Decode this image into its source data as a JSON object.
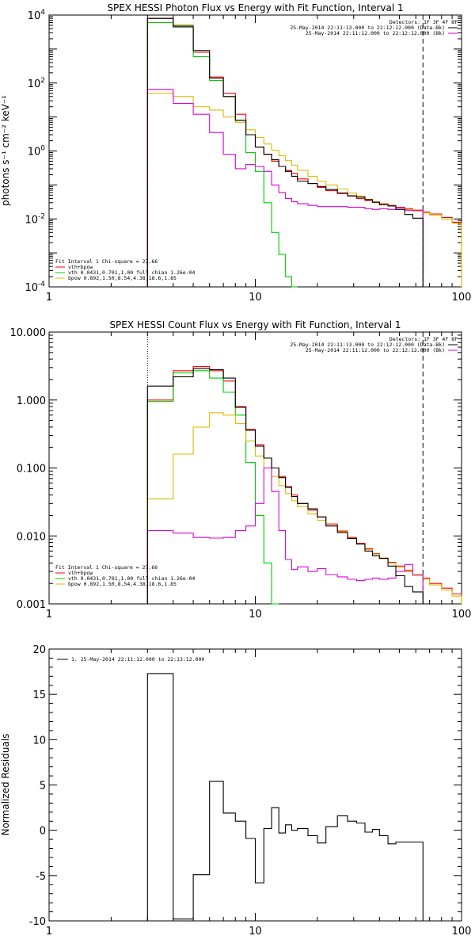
{
  "chart_data": [
    {
      "type": "line",
      "title": "SPEX HESSI Photon Flux vs Energy with Fit Function, Interval 1",
      "xlabel": "",
      "ylabel": "photons s⁻¹ cm⁻² keV⁻¹",
      "xscale": "log",
      "yscale": "log",
      "xlim": [
        1,
        100
      ],
      "ylim": [
        0.0001,
        10000
      ],
      "xticks": [
        {
          "v": 1,
          "label": "1"
        },
        {
          "v": 10,
          "label": "10"
        },
        {
          "v": 100,
          "label": "100"
        }
      ],
      "yticks": [
        {
          "v": 0.0001,
          "base": "10",
          "exp": "-4"
        },
        {
          "v": 0.01,
          "base": "10",
          "exp": "-2"
        },
        {
          "v": 1,
          "base": "10",
          "exp": "0"
        },
        {
          "v": 100,
          "base": "10",
          "exp": "2"
        },
        {
          "v": 10000,
          "base": "10",
          "exp": "4"
        }
      ],
      "vlines": [
        {
          "x": 3.0,
          "style": "dotted",
          "color": "#000000"
        },
        {
          "x": 65.0,
          "style": "dashed",
          "color": "#000000"
        }
      ],
      "edges": [
        3.0,
        4.0,
        5.0,
        6.0,
        7.0,
        8.0,
        9.0,
        10.0,
        11.0,
        12.0,
        13.0,
        14.0,
        15.0,
        16.0,
        18.0,
        20.0,
        22.0,
        25.0,
        28.0,
        31.0,
        34.0,
        37.0,
        40.0,
        44.0,
        48.0,
        53.0,
        58.0,
        65.0,
        70.0,
        80.0,
        90.0,
        100.0
      ],
      "series": [
        {
          "name": "vth+bpow",
          "color": "#ff0000",
          "values": [
            8000,
            5000,
            800,
            150,
            50,
            12,
            3.0,
            1.3,
            0.8,
            0.5,
            0.35,
            0.27,
            0.22,
            0.15,
            0.11,
            0.085,
            0.068,
            0.056,
            0.047,
            0.04,
            0.035,
            0.031,
            0.028,
            0.025,
            0.022,
            0.02,
            0.018,
            0.016,
            0.014,
            0.011,
            0.008
          ]
        },
        {
          "name": "vth 0.0431,0.701,1.00  full chian 1.26e-04",
          "color": "#00cc00",
          "values": [
            6000,
            4800,
            600,
            120,
            40,
            8,
            0.9,
            0.25,
            0.03,
            0.004,
            0.0009,
            0.0002,
            5e-05,
            null,
            null,
            null,
            null,
            null,
            null,
            null,
            null,
            null,
            null,
            null,
            null,
            null,
            null
          ]
        },
        {
          "name": "bpow 0.892,1.50,8.54,4.38,18.6,1.85",
          "color": "#ddbb00",
          "values": [
            50,
            40,
            20,
            16,
            10,
            7,
            4.2,
            2.5,
            1.6,
            1.05,
            0.72,
            0.52,
            0.38,
            0.27,
            0.18,
            0.13,
            0.1,
            0.076,
            0.058,
            0.047,
            0.038,
            0.032,
            0.027,
            0.024,
            0.021,
            0.019,
            0.017,
            0.015,
            0.013,
            0.01,
            0.0075
          ]
        },
        {
          "name": "25-May-2014 22:11:12.000 to 22:12:12.000 (Bk)",
          "color": "#dd00dd",
          "values": [
            65,
            25,
            12,
            3.5,
            0.8,
            0.3,
            0.4,
            0.35,
            0.25,
            0.1,
            0.06,
            0.04,
            0.032,
            0.028,
            0.025,
            0.023,
            0.023,
            0.023,
            0.022,
            0.022,
            0.02,
            0.019,
            0.02,
            0.019,
            0.021,
            0.018,
            0.018
          ]
        },
        {
          "name": "25-May-2014 22:11:13.000 to 22:12:12.000 (Data-Bk)",
          "color": "#000000",
          "values": [
            8000,
            4500,
            900,
            140,
            40,
            8,
            3,
            1.3,
            0.8,
            0.55,
            0.35,
            0.25,
            0.18,
            0.13,
            0.11,
            0.09,
            0.073,
            0.058,
            0.048,
            0.044,
            0.037,
            0.031,
            0.026,
            0.024,
            0.019,
            0.0135,
            0.0105
          ]
        }
      ],
      "legend_top": [
        {
          "text": "Detectors: 1F 3F 4F 8F",
          "color": null
        },
        {
          "text": "25-May-2014 22:11:13.000 to 22:12:12.000 (Data-Bk)",
          "color": "#000000"
        },
        {
          "text": "25-May-2014 22:11:12.000 to 22:12:12.000 (Bk)",
          "color": "#dd00dd"
        }
      ],
      "legend_bottom": [
        {
          "text": "Fit Interval 1   Chi-square = 27.66",
          "color": null
        },
        {
          "text": "vth+bpow",
          "color": "#ff0000"
        },
        {
          "text": "vth 0.0431,0.701,1.00  full chian 1.26e-04",
          "color": "#00cc00"
        },
        {
          "text": "bpow 0.892,1.50,8.54,4.38,18.6,1.85",
          "color": "#ddbb00"
        }
      ]
    },
    {
      "type": "line",
      "title": "SPEX HESSI Count Flux vs Energy with Fit Function, Interval 1",
      "xlabel": "",
      "ylabel": "",
      "xscale": "log",
      "yscale": "log",
      "xlim": [
        1,
        100
      ],
      "ylim": [
        0.001,
        10
      ],
      "xticks": [
        {
          "v": 1,
          "label": "1"
        },
        {
          "v": 10,
          "label": "10"
        },
        {
          "v": 100,
          "label": "100"
        }
      ],
      "yticks": [
        {
          "v": 0.001,
          "label": "0.001"
        },
        {
          "v": 0.01,
          "label": "0.010"
        },
        {
          "v": 0.1,
          "label": "0.100"
        },
        {
          "v": 1,
          "label": "1.000"
        },
        {
          "v": 10,
          "label": "10.000"
        }
      ],
      "vlines": [
        {
          "x": 3.0,
          "style": "dotted",
          "color": "#000000"
        },
        {
          "x": 65.0,
          "style": "dashed",
          "color": "#000000"
        }
      ],
      "edges": [
        3.0,
        4.0,
        5.0,
        6.0,
        7.0,
        8.0,
        9.0,
        10.0,
        11.0,
        12.0,
        13.0,
        14.0,
        15.0,
        16.0,
        18.0,
        20.0,
        22.0,
        25.0,
        28.0,
        31.0,
        34.0,
        37.0,
        40.0,
        44.0,
        48.0,
        53.0,
        58.0,
        65.0,
        70.0,
        80.0,
        90.0,
        100.0
      ],
      "series": [
        {
          "name": "vth+bpow",
          "color": "#ff0000",
          "values": [
            1.0,
            2.7,
            3.1,
            2.7,
            1.9,
            0.8,
            0.37,
            0.22,
            0.14,
            0.1,
            0.075,
            0.053,
            0.04,
            0.03,
            0.024,
            0.019,
            0.015,
            0.0118,
            0.0095,
            0.0078,
            0.0065,
            0.0055,
            0.0047,
            0.0041,
            0.0036,
            0.0031,
            0.0027,
            0.0024,
            0.002,
            0.0017,
            0.0014
          ]
        },
        {
          "name": "vth 0.0431,0.701,1.00  full chian 1.26e-04",
          "color": "#00cc00",
          "values": [
            0.95,
            2.5,
            2.7,
            2.1,
            1.3,
            0.6,
            0.12,
            0.02,
            0.004,
            0.0006,
            null,
            null,
            null,
            null,
            null,
            null,
            null,
            null,
            null,
            null,
            null,
            null,
            null,
            null,
            null,
            null,
            null
          ]
        },
        {
          "name": "bpow 0.892,1.50,8.54,4.38,18.6,1.85",
          "color": "#ddbb00",
          "values": [
            0.035,
            0.16,
            0.4,
            0.65,
            0.6,
            0.45,
            0.25,
            0.15,
            0.1,
            0.075,
            0.055,
            0.042,
            0.033,
            0.027,
            0.021,
            0.017,
            0.014,
            0.0115,
            0.0093,
            0.0076,
            0.0063,
            0.0054,
            0.0046,
            0.004,
            0.0035,
            0.003,
            0.0026,
            0.0023,
            0.0019,
            0.0016,
            0.0013
          ]
        },
        {
          "name": "25-May-2014 22:11:12.000 to 22:12:12.000 (Bk)",
          "color": "#dd00dd",
          "values": [
            0.012,
            0.011,
            0.0095,
            0.0093,
            0.0095,
            0.012,
            0.014,
            0.03,
            0.1,
            0.045,
            0.012,
            0.0045,
            0.0032,
            0.0035,
            0.003,
            0.0033,
            0.0027,
            0.0025,
            0.0023,
            0.0022,
            0.0023,
            0.0024,
            0.0023,
            0.0024,
            0.003,
            0.0038,
            0.0027
          ]
        },
        {
          "name": "25-May-2014 22:11:13.000 to 22:12:12.000 (Data-Bk)",
          "color": "#000000",
          "values": [
            1.6,
            2.2,
            2.9,
            2.8,
            2.1,
            0.78,
            0.36,
            0.21,
            0.14,
            0.1,
            0.072,
            0.052,
            0.038,
            0.03,
            0.025,
            0.019,
            0.014,
            0.0112,
            0.0092,
            0.0076,
            0.006,
            0.0051,
            0.0047,
            0.0036,
            0.0026,
            0.0018,
            0.0015
          ]
        }
      ],
      "legend_top": [
        {
          "text": "Detectors: 1F 3F 4F 8F",
          "color": null
        },
        {
          "text": "25-May-2014 22:11:13.000 to 22:12:12.000 (Data-Bk)",
          "color": "#000000"
        },
        {
          "text": "25-May-2014 22:11:12.000 to 22:12:12.000 (Bk)",
          "color": "#dd00dd"
        }
      ],
      "legend_bottom": [
        {
          "text": "Fit Interval 1   Chi-square = 27.66",
          "color": null
        },
        {
          "text": "vth+bpow",
          "color": "#ff0000"
        },
        {
          "text": "vth 0.0431,0.701,1.00  full chian 1.26e-04",
          "color": "#00cc00"
        },
        {
          "text": "bpow 0.892,1.50,8.54,4.38,18.6,1.85",
          "color": "#ddbb00"
        }
      ]
    },
    {
      "type": "line",
      "title": "",
      "xlabel": "",
      "ylabel": "Normalized Residuals",
      "xscale": "log",
      "yscale": "linear",
      "xlim": [
        1,
        100
      ],
      "ylim": [
        -10,
        20
      ],
      "xticks": [
        {
          "v": 1,
          "label": "1"
        },
        {
          "v": 10,
          "label": "10"
        },
        {
          "v": 100,
          "label": "100"
        }
      ],
      "yticks": [
        {
          "v": -10,
          "label": "-10"
        },
        {
          "v": -5,
          "label": "-5"
        },
        {
          "v": 0,
          "label": "0"
        },
        {
          "v": 5,
          "label": "5"
        },
        {
          "v": 10,
          "label": "10"
        },
        {
          "v": 15,
          "label": "15"
        },
        {
          "v": 20,
          "label": "20"
        }
      ],
      "vlines": [],
      "edges": [
        3.0,
        4.0,
        5.0,
        6.0,
        7.0,
        8.0,
        9.0,
        10.0,
        11.0,
        12.0,
        13.0,
        14.0,
        15.0,
        16.0,
        18.0,
        20.0,
        22.0,
        25.0,
        28.0,
        31.0,
        34.0,
        37.0,
        40.0,
        44.0,
        48.0,
        53.0,
        58.0,
        65.0
      ],
      "residual_start": -10,
      "series": [
        {
          "name": "1. 25-May-2014 22:11:12.000 to 22:13:12.000",
          "color": "#000000",
          "values": [
            17.3,
            -9.8,
            -4.9,
            5.4,
            1.9,
            1.0,
            -0.9,
            -5.8,
            0.2,
            2.5,
            -0.3,
            0.6,
            0.0,
            0.2,
            -0.6,
            -1.4,
            0.4,
            1.6,
            1.0,
            0.8,
            -0.2,
            0.1,
            -0.6,
            -1.5,
            -1.3,
            -1.3,
            -1.3
          ]
        }
      ],
      "legend_top": [
        {
          "text": "1. 25-May-2014 22:11:12.000 to 22:13:12.000",
          "color": "#000000"
        }
      ],
      "legend_bottom": []
    }
  ]
}
